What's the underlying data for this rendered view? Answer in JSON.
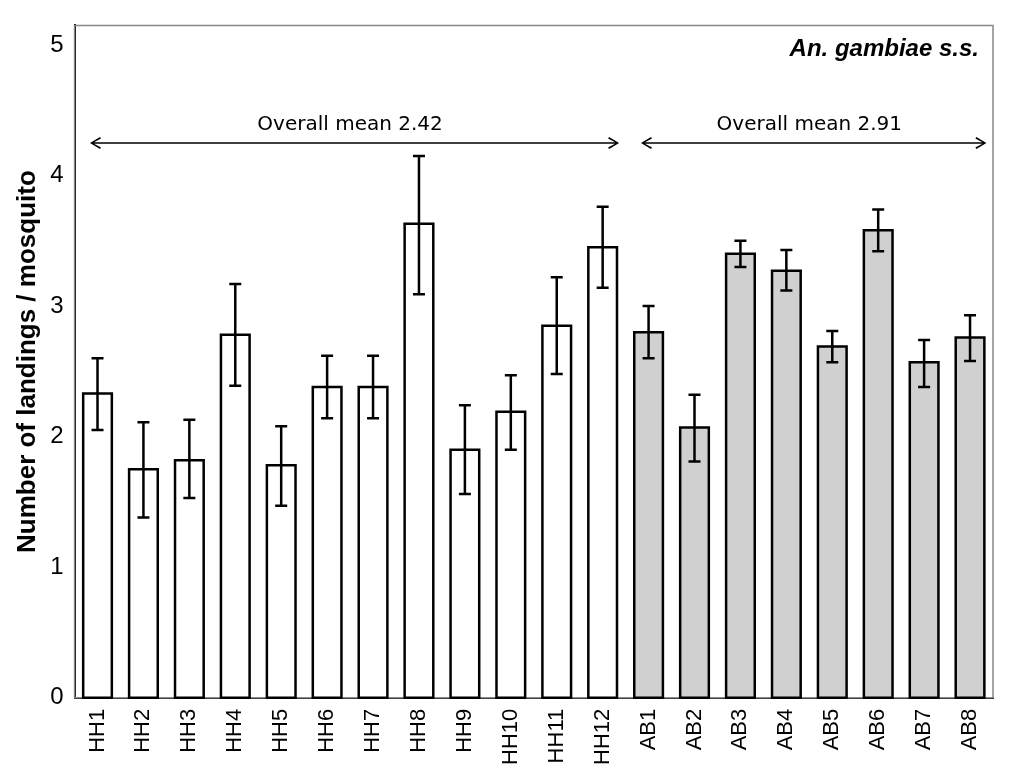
{
  "chart_data": {
    "type": "bar",
    "title": "An. gambiae s.s.",
    "ylabel": "Number of landings / mosquito",
    "categories": [
      "HH1",
      "HH2",
      "HH3",
      "HH4",
      "HH5",
      "HH6",
      "HH7",
      "HH8",
      "HH9",
      "HH10",
      "HH11",
      "HH12",
      "AB1",
      "AB2",
      "AB3",
      "AB4",
      "AB5",
      "AB6",
      "AB7",
      "AB8"
    ],
    "values": [
      2.33,
      1.75,
      1.82,
      2.78,
      1.78,
      2.38,
      2.38,
      3.63,
      1.9,
      2.19,
      2.85,
      3.45,
      2.8,
      2.07,
      3.4,
      3.27,
      2.69,
      3.58,
      2.57,
      2.76
    ],
    "colors": [
      "#ffffff",
      "#ffffff",
      "#ffffff",
      "#ffffff",
      "#ffffff",
      "#ffffff",
      "#ffffff",
      "#ffffff",
      "#ffffff",
      "#ffffff",
      "#ffffff",
      "#ffffff",
      "#d0d0d0",
      "#d0d0d0",
      "#d0d0d0",
      "#d0d0d0",
      "#d0d0d0",
      "#d0d0d0",
      "#d0d0d0",
      "#d0d0d0"
    ],
    "errors": [
      [
        2.05,
        2.6
      ],
      [
        1.38,
        2.11
      ],
      [
        1.53,
        2.13
      ],
      [
        2.39,
        3.17
      ],
      [
        1.47,
        2.08
      ],
      [
        2.14,
        2.62
      ],
      [
        2.14,
        2.62
      ],
      [
        3.09,
        4.15
      ],
      [
        1.56,
        2.24
      ],
      [
        1.9,
        2.47
      ],
      [
        2.48,
        3.22
      ],
      [
        3.14,
        3.76
      ],
      [
        2.6,
        3.0
      ],
      [
        1.81,
        2.32
      ],
      [
        3.3,
        3.5
      ],
      [
        3.12,
        3.43
      ],
      [
        2.57,
        2.81
      ],
      [
        3.42,
        3.74
      ],
      [
        2.38,
        2.74
      ],
      [
        2.58,
        2.93
      ]
    ],
    "annotations": [
      "Overall mean 2.42",
      "Overall mean 2.91"
    ],
    "ylim": [
      0,
      5.15
    ],
    "yticks": [
      0,
      1,
      2,
      3,
      4,
      5
    ],
    "grid": false,
    "legend": false
  }
}
